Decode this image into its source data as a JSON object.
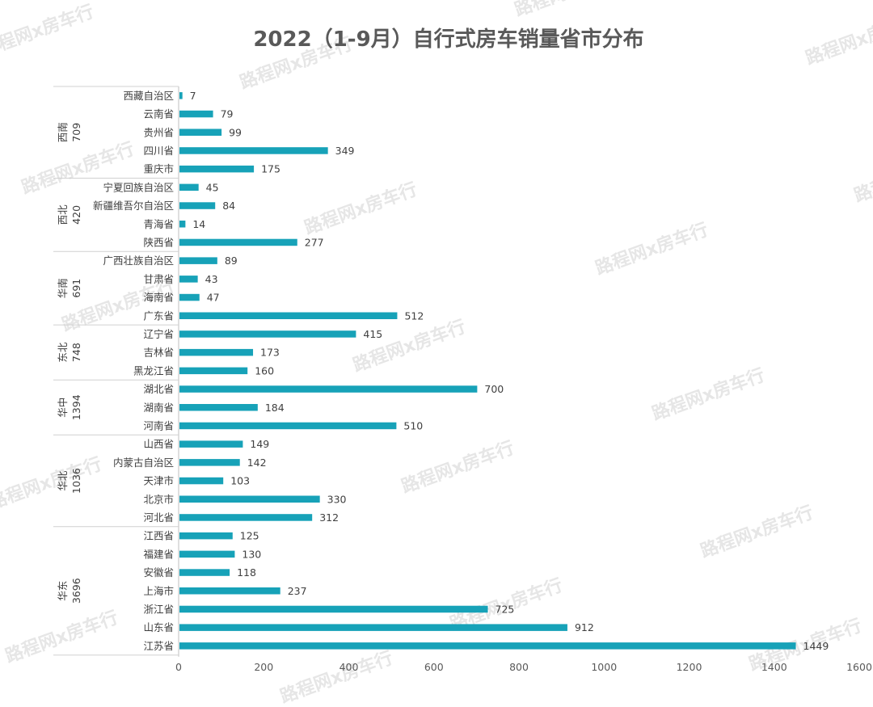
{
  "chart_data": {
    "type": "bar",
    "orientation": "horizontal",
    "title": "2022（1-9月）自行式房车销量省市分布",
    "xlabel": "",
    "ylabel": "",
    "xlim": [
      0,
      1600
    ],
    "xticks": [
      0,
      200,
      400,
      600,
      800,
      1000,
      1200,
      1400,
      1600
    ],
    "bar_color": "#17a2b8",
    "watermark": "路程网x房车行",
    "groups": [
      {
        "name": "西南",
        "total": 709,
        "items": [
          {
            "label": "西藏自治区",
            "value": 7
          },
          {
            "label": "云南省",
            "value": 79
          },
          {
            "label": "贵州省",
            "value": 99
          },
          {
            "label": "四川省",
            "value": 349
          },
          {
            "label": "重庆市",
            "value": 175
          }
        ]
      },
      {
        "name": "西北",
        "total": 420,
        "items": [
          {
            "label": "宁夏回族自治区",
            "value": 45
          },
          {
            "label": "新疆维吾尔自治区",
            "value": 84
          },
          {
            "label": "青海省",
            "value": 14
          },
          {
            "label": "陕西省",
            "value": 277
          }
        ]
      },
      {
        "name": "华南",
        "total": 691,
        "items": [
          {
            "label": "广西壮族自治区",
            "value": 89
          },
          {
            "label": "甘肃省",
            "value": 43
          },
          {
            "label": "海南省",
            "value": 47
          },
          {
            "label": "广东省",
            "value": 512
          }
        ]
      },
      {
        "name": "东北",
        "total": 748,
        "items": [
          {
            "label": "辽宁省",
            "value": 415
          },
          {
            "label": "吉林省",
            "value": 173
          },
          {
            "label": "黑龙江省",
            "value": 160
          }
        ]
      },
      {
        "name": "华中",
        "total": 1394,
        "items": [
          {
            "label": "湖北省",
            "value": 700
          },
          {
            "label": "湖南省",
            "value": 184
          },
          {
            "label": "河南省",
            "value": 510
          }
        ]
      },
      {
        "name": "华北",
        "total": 1036,
        "items": [
          {
            "label": "山西省",
            "value": 149
          },
          {
            "label": "内蒙古自治区",
            "value": 142
          },
          {
            "label": "天津市",
            "value": 103
          },
          {
            "label": "北京市",
            "value": 330
          },
          {
            "label": "河北省",
            "value": 312
          }
        ]
      },
      {
        "name": "华东",
        "total": 3696,
        "items": [
          {
            "label": "江西省",
            "value": 125
          },
          {
            "label": "福建省",
            "value": 130
          },
          {
            "label": "安徽省",
            "value": 118
          },
          {
            "label": "上海市",
            "value": 237
          },
          {
            "label": "浙江省",
            "value": 725
          },
          {
            "label": "山东省",
            "value": 912
          },
          {
            "label": "江苏省",
            "value": 1449
          }
        ]
      }
    ]
  }
}
